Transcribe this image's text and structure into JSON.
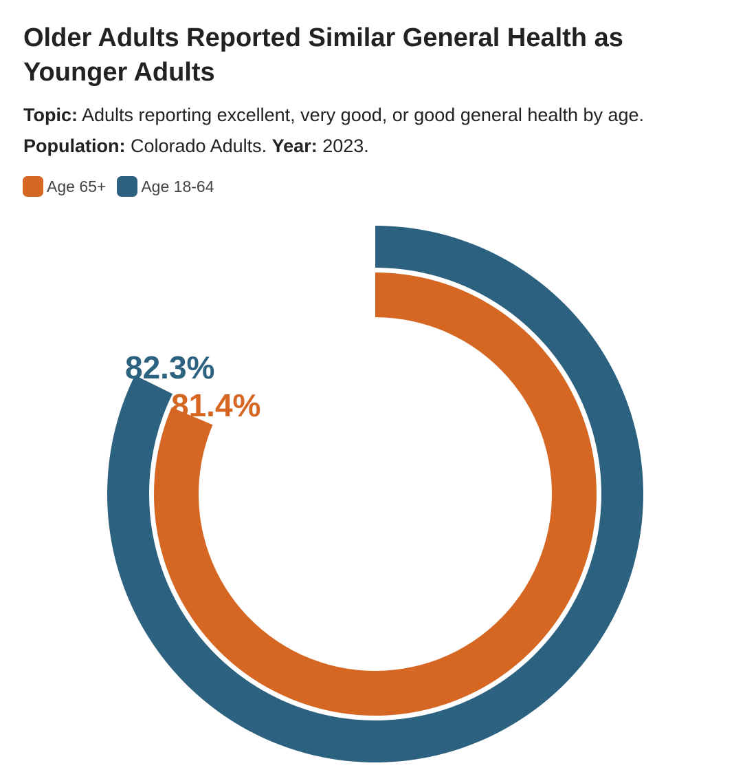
{
  "title": "Older Adults Reported Similar General Health as Younger Adults",
  "topic": {
    "label": "Topic:",
    "text": "Adults reporting excellent, very good, or good general health by age."
  },
  "population": {
    "label": "Population:",
    "text": "Colorado Adults.",
    "year_label": "Year:",
    "year_text": "2023."
  },
  "colors": {
    "age_65_plus": "#D56723",
    "age_18_64": "#2D6180"
  },
  "chart_data": {
    "type": "radial-bar",
    "title": "Older Adults Reported Similar General Health as Younger Adults",
    "unit": "%",
    "max": 100,
    "legend_position": "top-left",
    "series": [
      {
        "name": "Age 65+",
        "value": 81.4,
        "label": "81.4%",
        "color": "#D56723",
        "ring": "inner"
      },
      {
        "name": "Age 18-64",
        "value": 82.3,
        "label": "82.3%",
        "color": "#2D6180",
        "ring": "outer"
      }
    ]
  }
}
